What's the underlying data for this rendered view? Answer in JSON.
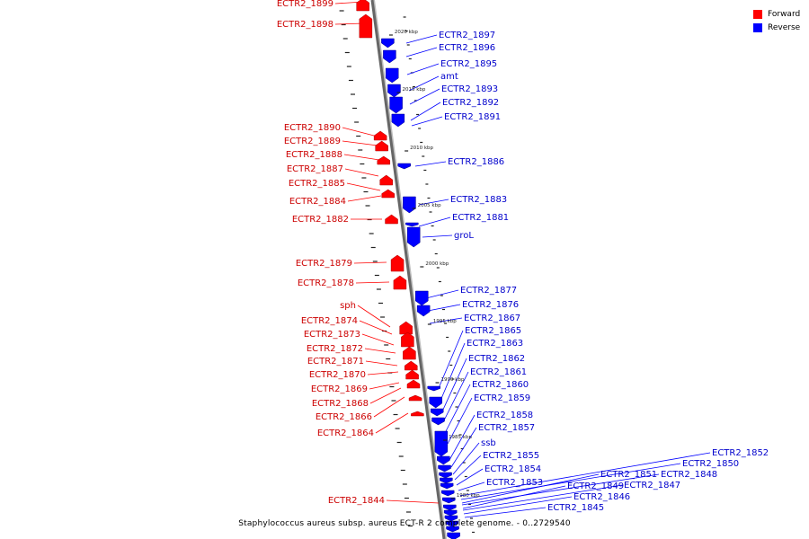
{
  "legend": {
    "forward_label": "Forward",
    "reverse_label": "Reverse",
    "forward_color": "#ff0000",
    "reverse_color": "#0000ff"
  },
  "caption": "Staphylococcus aureus subsp. aureus ECT-R 2 complete genome. - 0..2729540",
  "scale_labels": [
    "2020 kbp",
    "2015 kbp",
    "2010 kbp",
    "2005 kbp",
    "2000 kbp",
    "1995 kbp",
    "1990 kbp",
    "1985 kbp",
    "1980 kbp"
  ],
  "forward_genes": [
    "ECTR2_1899",
    "ECTR2_1898",
    "ECTR2_1890",
    "ECTR2_1889",
    "ECTR2_1888",
    "ECTR2_1887",
    "ECTR2_1885",
    "ECTR2_1884",
    "ECTR2_1882",
    "ECTR2_1879",
    "ECTR2_1878",
    "sph",
    "ECTR2_1874",
    "ECTR2_1873",
    "ECTR2_1872",
    "ECTR2_1871",
    "ECTR2_1870",
    "ECTR2_1869",
    "ECTR2_1868",
    "ECTR2_1866",
    "ECTR2_1864",
    "ECTR2_1844"
  ],
  "reverse_genes": [
    "ECTR2_1897",
    "ECTR2_1896",
    "ECTR2_1895",
    "amt",
    "ECTR2_1893",
    "ECTR2_1892",
    "ECTR2_1891",
    "ECTR2_1886",
    "ECTR2_1883",
    "ECTR2_1881",
    "groL",
    "ECTR2_1877",
    "ECTR2_1876",
    "ECTR2_1867",
    "ECTR2_1865",
    "ECTR2_1863",
    "ECTR2_1862",
    "ECTR2_1861",
    "ECTR2_1860",
    "ECTR2_1859",
    "ECTR2_1858",
    "ECTR2_1857",
    "ssb",
    "ECTR2_1855",
    "ECTR2_1854",
    "ECTR2_1853",
    "ECTR2_1852",
    "ECTR2_1850",
    "ECTR2_1851",
    "ECTR2_1848",
    "ECTR2_1849",
    "ECTR2_1847",
    "ECTR2_1846",
    "ECTR2_1845"
  ]
}
